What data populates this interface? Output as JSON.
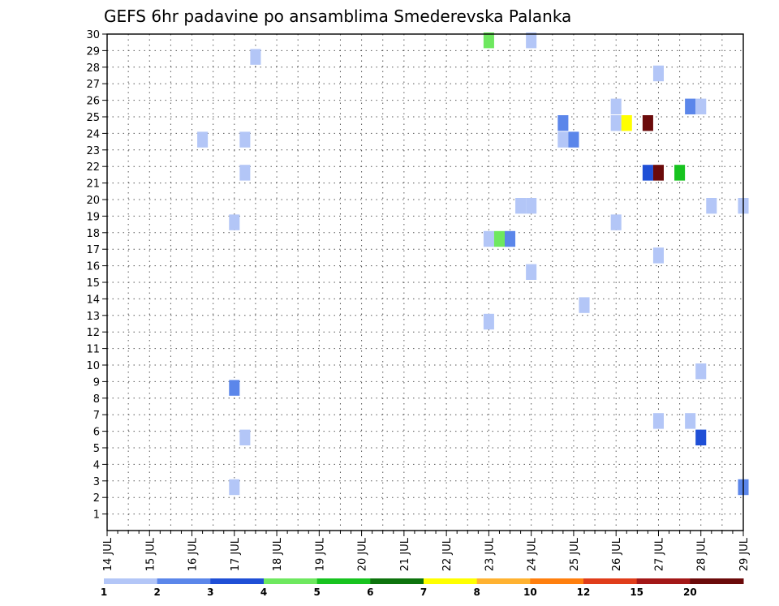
{
  "chart_data": {
    "type": "heatmap",
    "title": "GEFS 6hr padavine po ansamblima Smederevska Palanka",
    "xlabel": "",
    "ylabel": "",
    "x_tick_labels": [
      "14 JUL",
      "15 JUL",
      "16 JUL",
      "17 JUL",
      "18 JUL",
      "19 JUL",
      "20 JUL",
      "21 JUL",
      "22 JUL",
      "23 JUL",
      "24 JUL",
      "25 JUL",
      "26 JUL",
      "27 JUL",
      "28 JUL",
      "29 JUL"
    ],
    "x_start_day": 14,
    "xlim_days": [
      14,
      29
    ],
    "y_tick_labels": [
      "1",
      "2",
      "3",
      "4",
      "5",
      "6",
      "7",
      "8",
      "9",
      "10",
      "11",
      "12",
      "13",
      "14",
      "15",
      "16",
      "17",
      "18",
      "19",
      "20",
      "21",
      "22",
      "23",
      "24",
      "25",
      "26",
      "27",
      "28",
      "29",
      "30"
    ],
    "ylim": [
      0,
      30
    ],
    "grid": true,
    "legend": {
      "placement": "bottom",
      "colors": [
        "#b3c6f7",
        "#5b86ea",
        "#1f4fd6",
        "#6ee85f",
        "#17c31f",
        "#0d730d",
        "#ffff00",
        "#ffb231",
        "#ff7f0e",
        "#e03d1a",
        "#a31717",
        "#6b0a0a"
      ],
      "labels": [
        "1",
        "2",
        "3",
        "4",
        "5",
        "6",
        "7",
        "8",
        "10",
        "12",
        "15",
        "20"
      ],
      "bounds": [
        1,
        2,
        3,
        4,
        5,
        6,
        7,
        8,
        10,
        12,
        15,
        20
      ]
    },
    "cells": [
      {
        "day": 23.0,
        "member": 30,
        "value": 4.5
      },
      {
        "day": 24.0,
        "member": 30,
        "value": 1.5
      },
      {
        "day": 17.5,
        "member": 29,
        "value": 1.5
      },
      {
        "day": 27.0,
        "member": 28,
        "value": 1.5
      },
      {
        "day": 26.0,
        "member": 26,
        "value": 1.5
      },
      {
        "day": 27.75,
        "member": 26,
        "value": 2.5
      },
      {
        "day": 28.0,
        "member": 26,
        "value": 1.5
      },
      {
        "day": 24.75,
        "member": 25,
        "value": 2.5
      },
      {
        "day": 26.0,
        "member": 25,
        "value": 1.5
      },
      {
        "day": 26.25,
        "member": 25,
        "value": 7.5
      },
      {
        "day": 26.75,
        "member": 25,
        "value": 22
      },
      {
        "day": 16.25,
        "member": 24,
        "value": 1.5
      },
      {
        "day": 17.25,
        "member": 24,
        "value": 1.5
      },
      {
        "day": 24.75,
        "member": 24,
        "value": 1.5
      },
      {
        "day": 25.0,
        "member": 24,
        "value": 2.5
      },
      {
        "day": 17.25,
        "member": 22,
        "value": 1.5
      },
      {
        "day": 26.75,
        "member": 22,
        "value": 3.5
      },
      {
        "day": 27.0,
        "member": 22,
        "value": 22
      },
      {
        "day": 27.5,
        "member": 22,
        "value": 5.5
      },
      {
        "day": 23.75,
        "member": 20,
        "value": 1.5
      },
      {
        "day": 24.0,
        "member": 20,
        "value": 1.5
      },
      {
        "day": 28.25,
        "member": 20,
        "value": 1.5
      },
      {
        "day": 29.0,
        "member": 20,
        "value": 1.5
      },
      {
        "day": 17.0,
        "member": 19,
        "value": 1.5
      },
      {
        "day": 26.0,
        "member": 19,
        "value": 1.5
      },
      {
        "day": 23.0,
        "member": 18,
        "value": 1.5
      },
      {
        "day": 23.25,
        "member": 18,
        "value": 4.5
      },
      {
        "day": 23.5,
        "member": 18,
        "value": 2.5
      },
      {
        "day": 27.0,
        "member": 17,
        "value": 1.5
      },
      {
        "day": 24.0,
        "member": 16,
        "value": 1.5
      },
      {
        "day": 25.25,
        "member": 14,
        "value": 1.5
      },
      {
        "day": 23.0,
        "member": 13,
        "value": 1.5
      },
      {
        "day": 28.0,
        "member": 10,
        "value": 1.5
      },
      {
        "day": 17.0,
        "member": 9,
        "value": 2.5
      },
      {
        "day": 27.0,
        "member": 7,
        "value": 1.5
      },
      {
        "day": 27.75,
        "member": 7,
        "value": 1.5
      },
      {
        "day": 17.25,
        "member": 6,
        "value": 1.5
      },
      {
        "day": 28.0,
        "member": 6,
        "value": 3.5
      },
      {
        "day": 17.0,
        "member": 3,
        "value": 1.5
      },
      {
        "day": 29.0,
        "member": 3,
        "value": 2.5
      }
    ]
  }
}
